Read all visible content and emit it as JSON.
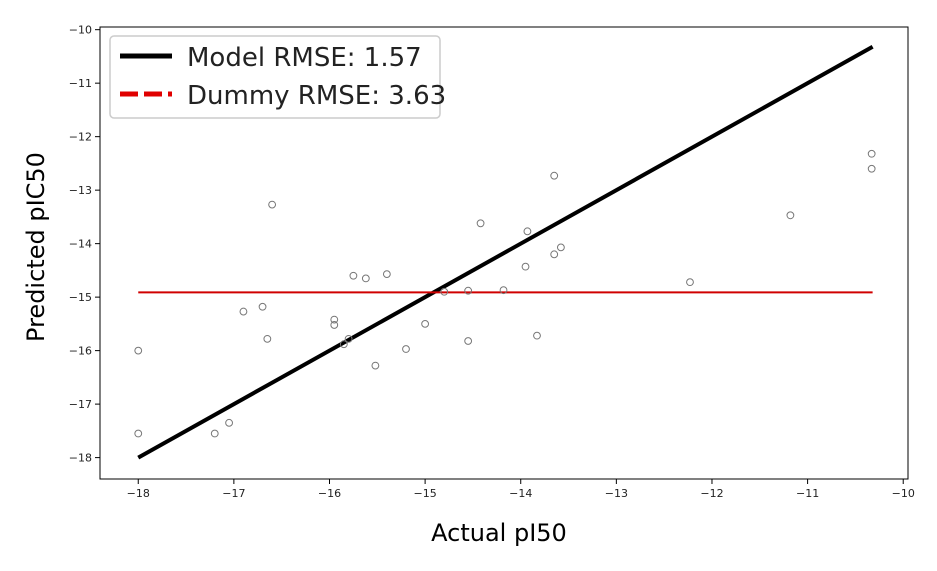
{
  "chart_data": {
    "type": "scatter",
    "title": "",
    "xlabel": "Actual pI50",
    "ylabel": "Predicted pIC50",
    "xlim": [
      -18.4,
      -9.95
    ],
    "ylim": [
      -18.4,
      -9.95
    ],
    "xticks": [
      -18,
      -17,
      -16,
      -15,
      -14,
      -13,
      -12,
      -11,
      -10
    ],
    "yticks": [
      -18,
      -17,
      -16,
      -15,
      -14,
      -13,
      -12,
      -11,
      -10
    ],
    "grid": false,
    "legend_position": "top-left",
    "legend": [
      {
        "label": "Model RMSE: 1.57",
        "color": "#000000",
        "style": "solid"
      },
      {
        "label": "Dummy RMSE: 3.63",
        "color": "#e00000",
        "style": "dashed"
      }
    ],
    "lines": [
      {
        "name": "Model RMSE: 1.57",
        "x": [
          -18.0,
          -10.32
        ],
        "y": [
          -18.0,
          -10.32
        ],
        "color": "#000000"
      },
      {
        "name": "Dummy RMSE: 3.63",
        "x": [
          -18.0,
          -10.32
        ],
        "y": [
          -14.91,
          -14.91
        ],
        "color": "#d00000"
      }
    ],
    "points": [
      {
        "x": -18.0,
        "y": -16.0
      },
      {
        "x": -18.0,
        "y": -17.55
      },
      {
        "x": -17.2,
        "y": -17.55
      },
      {
        "x": -17.05,
        "y": -17.35
      },
      {
        "x": -16.9,
        "y": -15.27
      },
      {
        "x": -16.7,
        "y": -15.18
      },
      {
        "x": -16.65,
        "y": -15.78
      },
      {
        "x": -16.6,
        "y": -13.27
      },
      {
        "x": -15.95,
        "y": -15.52
      },
      {
        "x": -15.95,
        "y": -15.42
      },
      {
        "x": -15.85,
        "y": -15.88
      },
      {
        "x": -15.8,
        "y": -15.78
      },
      {
        "x": -15.75,
        "y": -14.6
      },
      {
        "x": -15.62,
        "y": -14.65
      },
      {
        "x": -15.52,
        "y": -16.28
      },
      {
        "x": -15.4,
        "y": -14.57
      },
      {
        "x": -15.2,
        "y": -15.97
      },
      {
        "x": -15.0,
        "y": -15.5
      },
      {
        "x": -14.8,
        "y": -14.9
      },
      {
        "x": -14.55,
        "y": -14.88
      },
      {
        "x": -14.55,
        "y": -15.82
      },
      {
        "x": -14.42,
        "y": -13.62
      },
      {
        "x": -14.18,
        "y": -14.87
      },
      {
        "x": -13.95,
        "y": -14.43
      },
      {
        "x": -13.93,
        "y": -13.77
      },
      {
        "x": -13.83,
        "y": -15.72
      },
      {
        "x": -13.65,
        "y": -14.2
      },
      {
        "x": -13.65,
        "y": -12.73
      },
      {
        "x": -13.58,
        "y": -14.07
      },
      {
        "x": -12.23,
        "y": -14.72
      },
      {
        "x": -11.18,
        "y": -13.47
      },
      {
        "x": -10.33,
        "y": -12.32
      },
      {
        "x": -10.33,
        "y": -12.6
      }
    ]
  }
}
